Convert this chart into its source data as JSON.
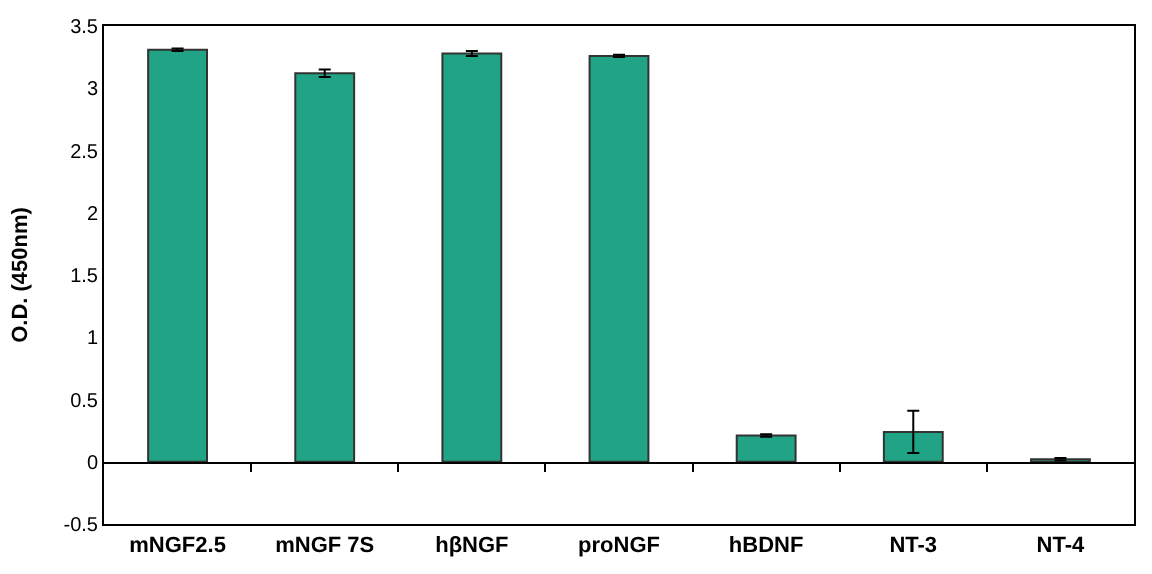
{
  "chart_data": {
    "type": "bar",
    "ylabel": "O.D. (450nm)",
    "categories": [
      "mNGF2.5",
      "mNGF 7S",
      "hβNGF",
      "proNGF",
      "hBDNF",
      "NT-3",
      "NT-4"
    ],
    "values": [
      3.31,
      3.12,
      3.28,
      3.26,
      0.21,
      0.24,
      0.02
    ],
    "errors": [
      0.01,
      0.03,
      0.02,
      0.01,
      0.01,
      0.17,
      0.01
    ],
    "color": "#21a386",
    "ylim": [
      -0.5,
      3.5
    ],
    "yticks": [
      -0.5,
      0,
      0.5,
      1,
      1.5,
      2,
      2.5,
      3,
      3.5
    ]
  }
}
